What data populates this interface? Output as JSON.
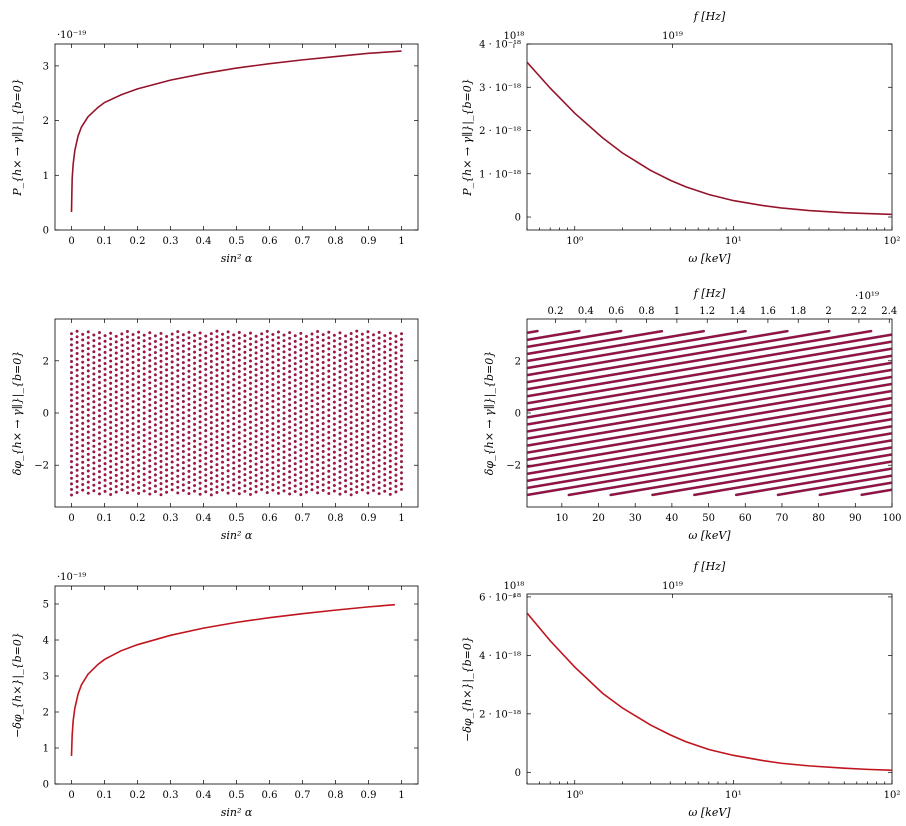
{
  "colors": {
    "line_overlay": "#7a1a3a",
    "line_red": "#c0141e",
    "dots": "#b0103a",
    "dots_edge": "#5a1850"
  },
  "chart_data": [
    {
      "id": "p1",
      "type": "line",
      "xscale": "linear",
      "xlim": [
        -0.05,
        1.05
      ],
      "ylim": [
        0,
        3.4
      ],
      "xticks": [
        0,
        0.1,
        0.2,
        0.3,
        0.4,
        0.5,
        0.6,
        0.7,
        0.8,
        0.9,
        1
      ],
      "yticks": [
        0,
        1,
        2,
        3
      ],
      "xlabel": "sin² α",
      "ylabel": "P_{h× → γ∥}|_{b=0}",
      "yscale_label": "·10⁻¹⁹",
      "series": [
        {
          "x": [
            0.0,
            0.002,
            0.005,
            0.01,
            0.02,
            0.03,
            0.05,
            0.08,
            0.1,
            0.15,
            0.2,
            0.3,
            0.4,
            0.5,
            0.6,
            0.7,
            0.8,
            0.9,
            1.0
          ],
          "y": [
            0.33,
            0.94,
            1.2,
            1.45,
            1.72,
            1.88,
            2.07,
            2.24,
            2.33,
            2.47,
            2.58,
            2.74,
            2.86,
            2.96,
            3.04,
            3.11,
            3.17,
            3.23,
            3.27
          ]
        }
      ]
    },
    {
      "id": "p2",
      "type": "line",
      "xscale": "log",
      "xlim": [
        0.5,
        100
      ],
      "ylim": [
        -0.3,
        4.0
      ],
      "xticks": [
        1,
        10,
        100
      ],
      "xticklabels": [
        "10⁰",
        "10¹",
        "10²"
      ],
      "yticks": [
        0,
        1,
        2,
        3,
        4
      ],
      "yticklabels": [
        "0",
        "1 · 10⁻¹⁸",
        "2 · 10⁻¹⁸",
        "3 · 10⁻¹⁸",
        "4 · 10⁻¹⁸"
      ],
      "xlabel": "ω [keV]",
      "ylabel": "P_{h× → γ∥}|_{b=0}",
      "top_axis": {
        "label": "f [Hz]",
        "ticks": [
          0.4136,
          4.136
        ],
        "ticklabels": [
          "10¹⁸",
          "10¹⁹"
        ]
      },
      "series": [
        {
          "x": [
            0.5,
            0.7,
            1,
            1.5,
            2,
            3,
            4,
            5,
            7,
            10,
            15,
            20,
            30,
            50,
            70,
            100
          ],
          "y": [
            3.58,
            2.98,
            2.4,
            1.83,
            1.48,
            1.08,
            0.85,
            0.7,
            0.52,
            0.38,
            0.27,
            0.21,
            0.15,
            0.1,
            0.08,
            0.06
          ]
        }
      ]
    },
    {
      "id": "p3",
      "type": "scatter",
      "xscale": "linear",
      "xlim": [
        -0.05,
        1.05
      ],
      "ylim": [
        -3.6,
        3.6
      ],
      "xticks": [
        0,
        0.1,
        0.2,
        0.3,
        0.4,
        0.5,
        0.6,
        0.7,
        0.8,
        0.9,
        1
      ],
      "yticks": [
        -2,
        0,
        2
      ],
      "yticklabels": [
        "−2",
        "0",
        "2"
      ],
      "xlabel": "sin² α",
      "ylabel": "δφ_{h× → γ∥}|_{b=0}",
      "pattern": {
        "x_range": [
          0,
          1
        ],
        "y_range": [
          -3.14,
          3.14
        ],
        "n_x": 60,
        "dy": 0.213,
        "slope": 5.2
      }
    },
    {
      "id": "p4",
      "type": "scatter",
      "xscale": "linear",
      "xlim": [
        0.5,
        100
      ],
      "ylim": [
        -3.6,
        3.6
      ],
      "xticks": [
        10,
        20,
        30,
        40,
        50,
        60,
        70,
        80,
        90,
        100
      ],
      "yticks": [
        -2,
        0,
        2
      ],
      "yticklabels": [
        "−2",
        "0",
        "2"
      ],
      "xlabel": "ω [keV]",
      "ylabel": "δφ_{h× → γ∥}|_{b=0}",
      "top_axis": {
        "label": "f [Hz]",
        "scale_label": "·10¹⁹",
        "ticks": [
          8.27,
          16.54,
          24.81,
          33.08,
          41.36,
          49.63,
          57.9,
          66.17,
          74.44,
          82.71,
          90.98,
          99.25
        ],
        "ticklabels": [
          "0.2",
          "0.4",
          "0.6",
          "0.8",
          "1",
          "1.2",
          "1.4",
          "1.6",
          "1.8",
          "2",
          "2.2",
          "2.4"
        ]
      },
      "pattern": {
        "x_range": [
          0.5,
          100
        ],
        "y_range": [
          -3.14,
          3.14
        ],
        "n_x": 350,
        "dy": 0.27,
        "slope": 0.3
      }
    },
    {
      "id": "p5",
      "type": "line",
      "xscale": "linear",
      "xlim": [
        -0.05,
        1.05
      ],
      "ylim": [
        0,
        5.5
      ],
      "xticks": [
        0,
        0.1,
        0.2,
        0.3,
        0.4,
        0.5,
        0.6,
        0.7,
        0.8,
        0.9,
        1
      ],
      "yticks": [
        0,
        1,
        2,
        3,
        4,
        5
      ],
      "xlabel": "sin² α",
      "ylabel": "−δφ_{h×}|_{b=0}",
      "yscale_label": "·10⁻¹⁹",
      "series": [
        {
          "x": [
            0.0,
            0.002,
            0.005,
            0.01,
            0.02,
            0.03,
            0.05,
            0.08,
            0.1,
            0.15,
            0.2,
            0.3,
            0.4,
            0.5,
            0.6,
            0.7,
            0.8,
            0.9,
            0.98
          ],
          "y": [
            0.78,
            1.35,
            1.75,
            2.1,
            2.5,
            2.75,
            3.05,
            3.32,
            3.46,
            3.7,
            3.87,
            4.13,
            4.33,
            4.49,
            4.62,
            4.73,
            4.83,
            4.92,
            4.98
          ]
        }
      ]
    },
    {
      "id": "p6",
      "type": "line",
      "xscale": "log",
      "xlim": [
        0.5,
        100
      ],
      "ylim": [
        -0.4,
        6.1
      ],
      "xticks": [
        1,
        10,
        100
      ],
      "xticklabels": [
        "10⁰",
        "10¹",
        "10²"
      ],
      "yticks": [
        0,
        2,
        4,
        6
      ],
      "yticklabels": [
        "0",
        "2 · 10⁻¹⁸",
        "4 · 10⁻¹⁸",
        "6 · 10⁻¹⁸"
      ],
      "xlabel": "ω [keV]",
      "ylabel": "−δφ_{h×}|_{b=0}",
      "top_axis": {
        "label": "f [Hz]",
        "ticks": [
          0.4136,
          4.136
        ],
        "ticklabels": [
          "10¹⁸",
          "10¹⁹"
        ]
      },
      "series": [
        {
          "x": [
            0.5,
            0.7,
            1,
            1.5,
            2,
            3,
            4,
            5,
            7,
            10,
            15,
            20,
            30,
            50,
            70,
            100
          ],
          "y": [
            5.45,
            4.5,
            3.6,
            2.7,
            2.2,
            1.62,
            1.28,
            1.05,
            0.78,
            0.58,
            0.41,
            0.31,
            0.22,
            0.14,
            0.1,
            0.07
          ]
        }
      ]
    }
  ]
}
